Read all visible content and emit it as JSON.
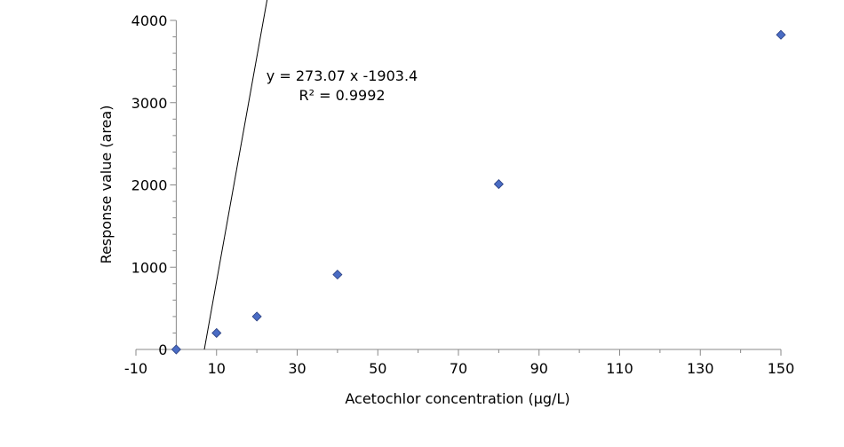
{
  "chart_data": {
    "type": "scatter",
    "xlabel": "Acetochlor concentration (µg/L)",
    "ylabel": "Response value (area)",
    "xlim": [
      -10,
      150
    ],
    "ylim": [
      0,
      4000
    ],
    "x_ticks": [
      -10,
      10,
      30,
      50,
      70,
      90,
      110,
      130,
      150
    ],
    "y_ticks": [
      0,
      1000,
      2000,
      3000,
      4000
    ],
    "grid": false,
    "points": [
      {
        "x": 0,
        "y": 0
      },
      {
        "x": 10,
        "y": 200
      },
      {
        "x": 20,
        "y": 400
      },
      {
        "x": 40,
        "y": 910
      },
      {
        "x": 80,
        "y": 2010
      },
      {
        "x": 150,
        "y": 3825
      }
    ],
    "trendline": {
      "slope": 273.07,
      "intercept": -1903.4,
      "x_range": [
        0,
        150
      ]
    },
    "annotations": {
      "equation": "y = 273.07 x -1903.4",
      "r_squared": "R² = 0.9992"
    },
    "colors": {
      "marker_fill": "#4a6cc4",
      "marker_stroke": "#2a3f80",
      "trendline": "#000000",
      "axis": "#888888"
    }
  }
}
